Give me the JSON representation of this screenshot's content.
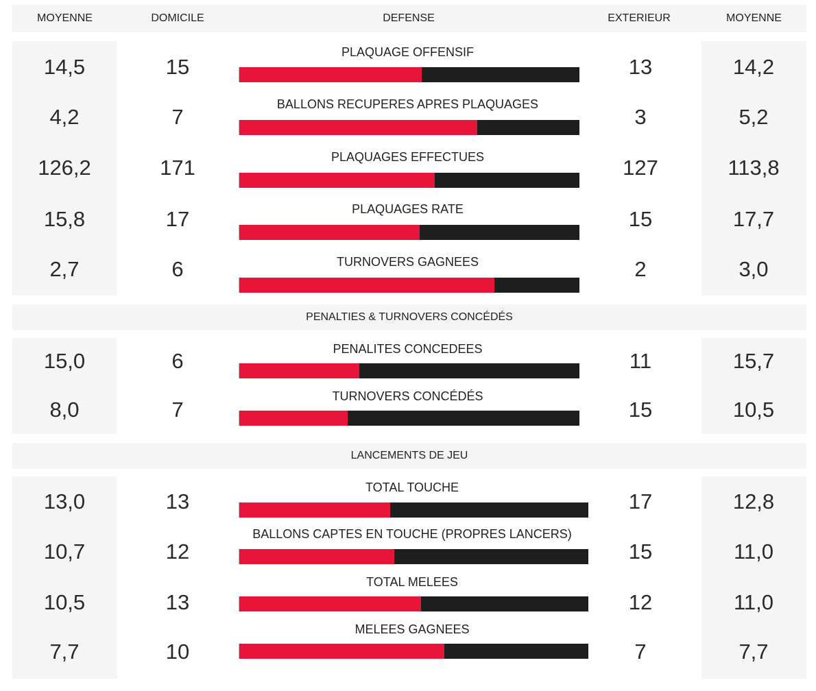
{
  "header": {
    "moyenne_left": "MOYENNE",
    "domicile": "DOMICILE",
    "defense": "DEFENSE",
    "exterieur": "EXTERIEUR",
    "moyenne_right": "MOYENNE"
  },
  "colors": {
    "home_bar": "#e8143a",
    "away_bar": "#1e1e1e",
    "panel": "#f5f5f5"
  },
  "sections": [
    {
      "title": "",
      "rows": [
        {
          "label": "PLAQUAGE OFFENSIF",
          "moyenne_home": "14,5",
          "home": "15",
          "away": "13",
          "moyenne_away": "14,2",
          "home_share": 0.536
        },
        {
          "label": "BALLONS RECUPERES APRES PLAQUAGES",
          "moyenne_home": "4,2",
          "home": "7",
          "away": "3",
          "moyenne_away": "5,2",
          "home_share": 0.7
        },
        {
          "label": "PLAQUAGES EFFECTUES",
          "moyenne_home": "126,2",
          "home": "171",
          "away": "127",
          "moyenne_away": "113,8",
          "home_share": 0.574
        },
        {
          "label": "PLAQUAGES RATE",
          "moyenne_home": "15,8",
          "home": "17",
          "away": "15",
          "moyenne_away": "17,7",
          "home_share": 0.531
        },
        {
          "label": "TURNOVERS GAGNEES",
          "moyenne_home": "2,7",
          "home": "6",
          "away": "2",
          "moyenne_away": "3,0",
          "home_share": 0.75
        }
      ]
    },
    {
      "title": "PENALTIES & TURNOVERS CONCÉDÉS",
      "rows": [
        {
          "label": "PENALITES CONCEDEES",
          "moyenne_home": "15,0",
          "home": "6",
          "away": "11",
          "moyenne_away": "15,7",
          "home_share": 0.353
        },
        {
          "label": "TURNOVERS CONCÉDÉS",
          "moyenne_home": "8,0",
          "home": "7",
          "away": "15",
          "moyenne_away": "10,5",
          "home_share": 0.318
        }
      ]
    },
    {
      "title": "LANCEMENTS DE JEU",
      "rows": [
        {
          "label": "TOTAL TOUCHE",
          "moyenne_home": "13,0",
          "home": "13",
          "away": "17",
          "moyenne_away": "12,8",
          "home_share": 0.433
        },
        {
          "label": "BALLONS CAPTES EN TOUCHE (PROPRES LANCERS)",
          "moyenne_home": "10,7",
          "home": "12",
          "away": "15",
          "moyenne_away": "11,0",
          "home_share": 0.444
        },
        {
          "label": "TOTAL MELEES",
          "moyenne_home": "10,5",
          "home": "13",
          "away": "12",
          "moyenne_away": "11,0",
          "home_share": 0.52
        },
        {
          "label": "MELEES GAGNEES",
          "moyenne_home": "7,7",
          "home": "10",
          "away": "7",
          "moyenne_away": "7,7",
          "home_share": 0.588
        }
      ]
    }
  ]
}
